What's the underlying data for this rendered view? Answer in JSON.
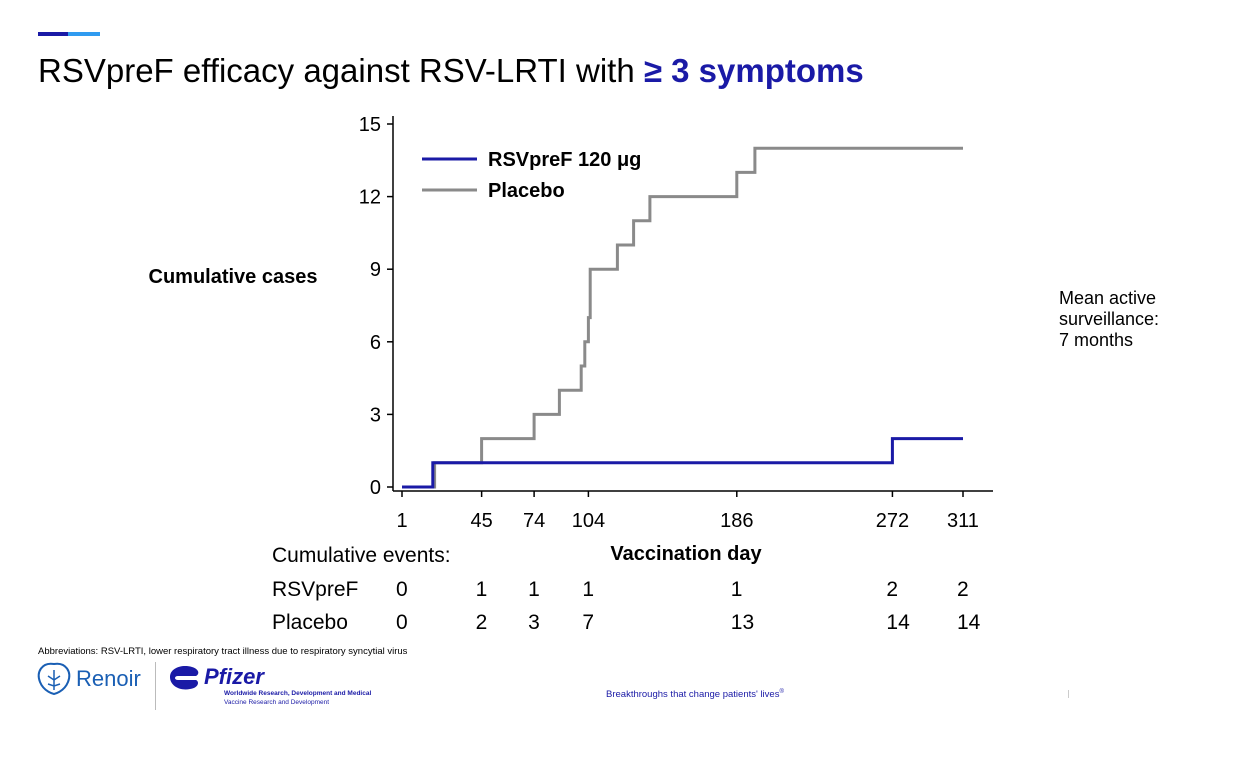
{
  "slide": {
    "title_plain": "RSVpreF efficacy against RSV-LRTI with ",
    "title_highlight": "≥ 3 symptoms",
    "side_note": [
      "Mean active",
      "surveillance:",
      "7 months"
    ],
    "abbreviations": "Abbreviations: RSV-LRTI, lower respiratory tract illness due to respiratory syncytial virus",
    "tagline": "Breakthroughs that change patients' lives",
    "tagline_mark": "®",
    "renoir_logo": "Renoir",
    "pfizer_logo": "Pfizer",
    "pfizer_sub1": "Worldwide Research, Development and Medical",
    "pfizer_sub2": "Vaccine Research and Development",
    "colors": {
      "accent": "#1a1aa6",
      "accent_light": "#2f9bf0",
      "rsvpref": "#1a1aa6",
      "placebo": "#8a8a8a"
    }
  },
  "events_table": {
    "header": "Cumulative events:",
    "days": [
      1,
      45,
      74,
      104,
      186,
      272,
      311
    ],
    "rows": [
      {
        "label": "RSVpreF",
        "values": [
          "0",
          "1",
          "1",
          "1",
          "1",
          "2",
          "2"
        ]
      },
      {
        "label": "Placebo",
        "values": [
          "0",
          "2",
          "3",
          "7",
          "13",
          "14",
          "14"
        ]
      }
    ]
  },
  "chart_data": {
    "type": "line",
    "title": "",
    "xlabel": "Vaccination day",
    "ylabel": "Cumulative cases",
    "xlim": [
      1,
      311
    ],
    "ylim": [
      0,
      15
    ],
    "xticks": [
      1,
      45,
      74,
      104,
      186,
      272,
      311
    ],
    "yticks": [
      0,
      3,
      6,
      9,
      12,
      15
    ],
    "grid": false,
    "legend": "top-left",
    "series": [
      {
        "name": "RSVpreF 120 μg",
        "color": "#1a1aa6",
        "step": true,
        "points": [
          [
            1,
            0
          ],
          [
            18,
            0
          ],
          [
            18,
            1
          ],
          [
            272,
            1
          ],
          [
            272,
            2
          ],
          [
            311,
            2
          ]
        ]
      },
      {
        "name": "Placebo",
        "color": "#8a8a8a",
        "step": true,
        "points": [
          [
            1,
            0
          ],
          [
            19,
            0
          ],
          [
            19,
            1
          ],
          [
            45,
            1
          ],
          [
            45,
            2
          ],
          [
            74,
            2
          ],
          [
            74,
            3
          ],
          [
            88,
            3
          ],
          [
            88,
            4
          ],
          [
            100,
            4
          ],
          [
            100,
            5
          ],
          [
            102,
            5
          ],
          [
            102,
            6
          ],
          [
            104,
            6
          ],
          [
            104,
            7
          ],
          [
            105,
            7
          ],
          [
            105,
            9
          ],
          [
            120,
            9
          ],
          [
            120,
            10
          ],
          [
            129,
            10
          ],
          [
            129,
            11
          ],
          [
            138,
            11
          ],
          [
            138,
            12
          ],
          [
            186,
            12
          ],
          [
            186,
            13
          ],
          [
            196,
            13
          ],
          [
            196,
            14
          ],
          [
            311,
            14
          ]
        ]
      }
    ]
  }
}
